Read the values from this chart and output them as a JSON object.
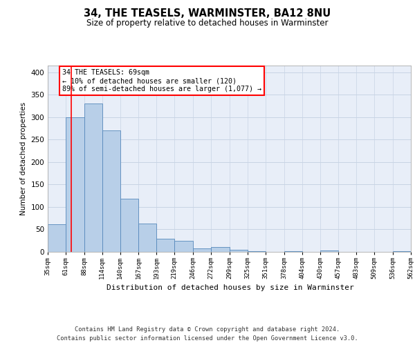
{
  "title": "34, THE TEASELS, WARMINSTER, BA12 8NU",
  "subtitle": "Size of property relative to detached houses in Warminster",
  "xlabel": "Distribution of detached houses by size in Warminster",
  "ylabel": "Number of detached properties",
  "footer_line1": "Contains HM Land Registry data © Crown copyright and database right 2024.",
  "footer_line2": "Contains public sector information licensed under the Open Government Licence v3.0.",
  "annotation_line1": "34 THE TEASELS: 69sqm",
  "annotation_line2": "← 10% of detached houses are smaller (120)",
  "annotation_line3": "89% of semi-detached houses are larger (1,077) →",
  "bar_edges": [
    35,
    61,
    88,
    114,
    140,
    167,
    193,
    219,
    246,
    272,
    299,
    325,
    351,
    378,
    404,
    430,
    457,
    483,
    509,
    536,
    562
  ],
  "bar_heights": [
    62,
    300,
    330,
    270,
    119,
    63,
    29,
    25,
    7,
    10,
    5,
    1,
    0,
    2,
    0,
    3,
    0,
    0,
    0,
    2
  ],
  "bar_color": "#b8cfe8",
  "bar_edge_color": "#5588bb",
  "grid_color": "#c8d4e4",
  "background_color": "#e8eef8",
  "red_line_x": 69,
  "ylim_max": 415,
  "yticks": [
    0,
    50,
    100,
    150,
    200,
    250,
    300,
    350,
    400
  ]
}
